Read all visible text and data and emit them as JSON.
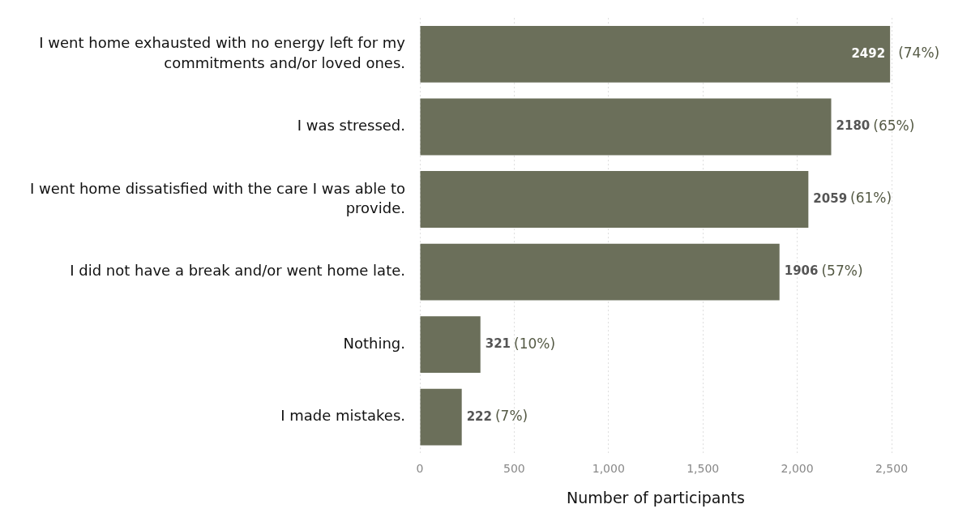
{
  "chart_data": {
    "type": "bar",
    "orientation": "horizontal",
    "xlabel": "Number of participants",
    "categories": [
      "I went home exhausted with no energy left for my commitments and/or loved ones.",
      "I was stressed.",
      "I went home dissatisfied with the care I was able to provide.",
      "I did not have a break and/or went home late.",
      "Nothing.",
      "I made mistakes."
    ],
    "values": [
      2492,
      2180,
      2059,
      1906,
      321,
      222
    ],
    "value_labels": [
      "2492 (74%)",
      "2180 (65%)",
      "2059 (61%)",
      "1906 (57%)",
      "321 (10%)",
      "222 (7%)"
    ],
    "color": "#6b6f5a",
    "xlim": [
      0,
      2500
    ],
    "xticks": [
      0,
      500,
      {
        "value": 1000,
        "label": "1,000"
      },
      {
        "value": 1500,
        "label": "1,500"
      },
      {
        "value": 2000,
        "label": "2,000"
      },
      {
        "value": 2500,
        "label": "2,500"
      }
    ],
    "grid": "x",
    "legend": false
  }
}
